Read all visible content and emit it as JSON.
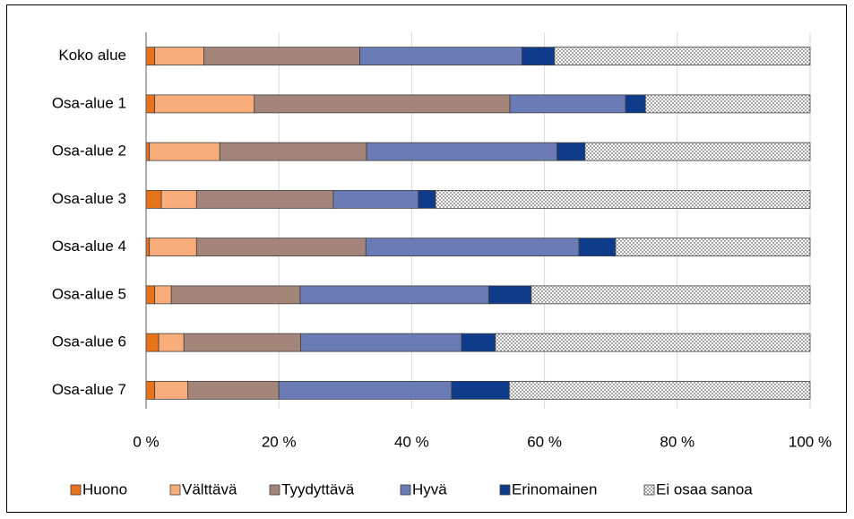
{
  "chart_data": {
    "type": "stacked_barh",
    "categories": [
      "Koko alue",
      "Osa-alue 1",
      "Osa-alue 2",
      "Osa-alue 3",
      "Osa-alue 4",
      "Osa-alue 5",
      "Osa-alue 6",
      "Osa-alue 7"
    ],
    "series": [
      {
        "name": "Huono",
        "color": "#e8731a",
        "values": [
          1.3,
          1.3,
          0.5,
          2.3,
          0.5,
          1.3,
          1.9,
          1.3
        ]
      },
      {
        "name": "Välttävä",
        "color": "#f9ad7a",
        "values": [
          7.4,
          15.0,
          10.6,
          5.3,
          7.1,
          2.5,
          3.8,
          5.0
        ]
      },
      {
        "name": "Tyydyttävä",
        "color": "#a3857a",
        "values": [
          23.5,
          38.5,
          22.1,
          20.6,
          25.5,
          19.4,
          17.6,
          13.7
        ]
      },
      {
        "name": "Hyvä",
        "color": "#6b7bb5",
        "values": [
          24.4,
          17.4,
          28.7,
          12.8,
          32.1,
          28.4,
          24.2,
          26.0
        ]
      },
      {
        "name": "Erinomainen",
        "color": "#0e3b8a",
        "values": [
          4.9,
          3.0,
          4.2,
          2.6,
          5.5,
          6.4,
          5.1,
          8.7
        ]
      },
      {
        "name": "Ei osaa sanoa",
        "color": "#cfcfcf",
        "pattern": "dots",
        "values": [
          38.5,
          24.8,
          33.9,
          56.4,
          29.3,
          42.0,
          47.4,
          45.3
        ]
      }
    ],
    "xlim": [
      0,
      100
    ],
    "xticks": [
      {
        "value": 0,
        "label": "0 %"
      },
      {
        "value": 20,
        "label": "20 %"
      },
      {
        "value": 40,
        "label": "40 %"
      },
      {
        "value": 60,
        "label": "60 %"
      },
      {
        "value": 80,
        "label": "80 %"
      },
      {
        "value": 100,
        "label": "100 %"
      }
    ],
    "grid": true,
    "legend": "bottom"
  }
}
